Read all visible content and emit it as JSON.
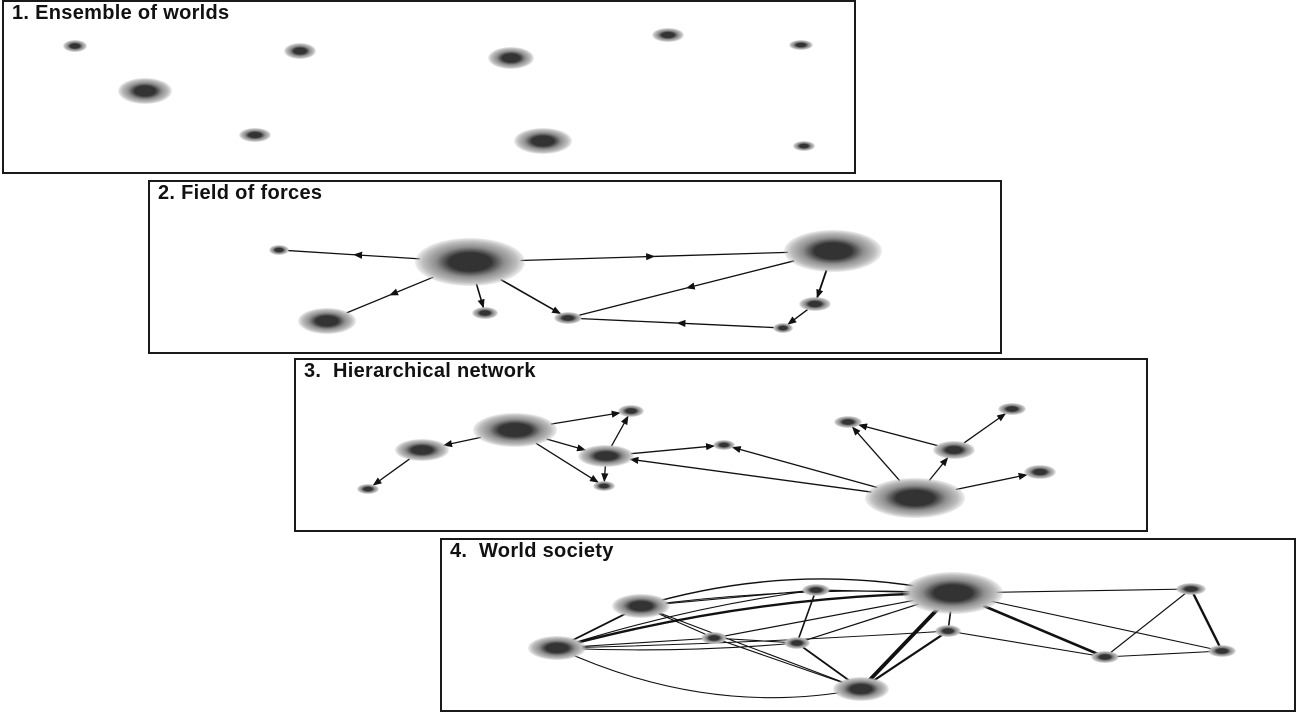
{
  "panels": [
    {
      "title": "1. Ensemble of worlds"
    },
    {
      "title": "2. Field of forces"
    },
    {
      "title": "3.  Hierarchical network"
    },
    {
      "title": "4.  World society"
    }
  ],
  "colors": {
    "node_core": "#333333",
    "node_halo": "#bdbdbd",
    "line": "#111111",
    "border": "#1a1a1a"
  }
}
